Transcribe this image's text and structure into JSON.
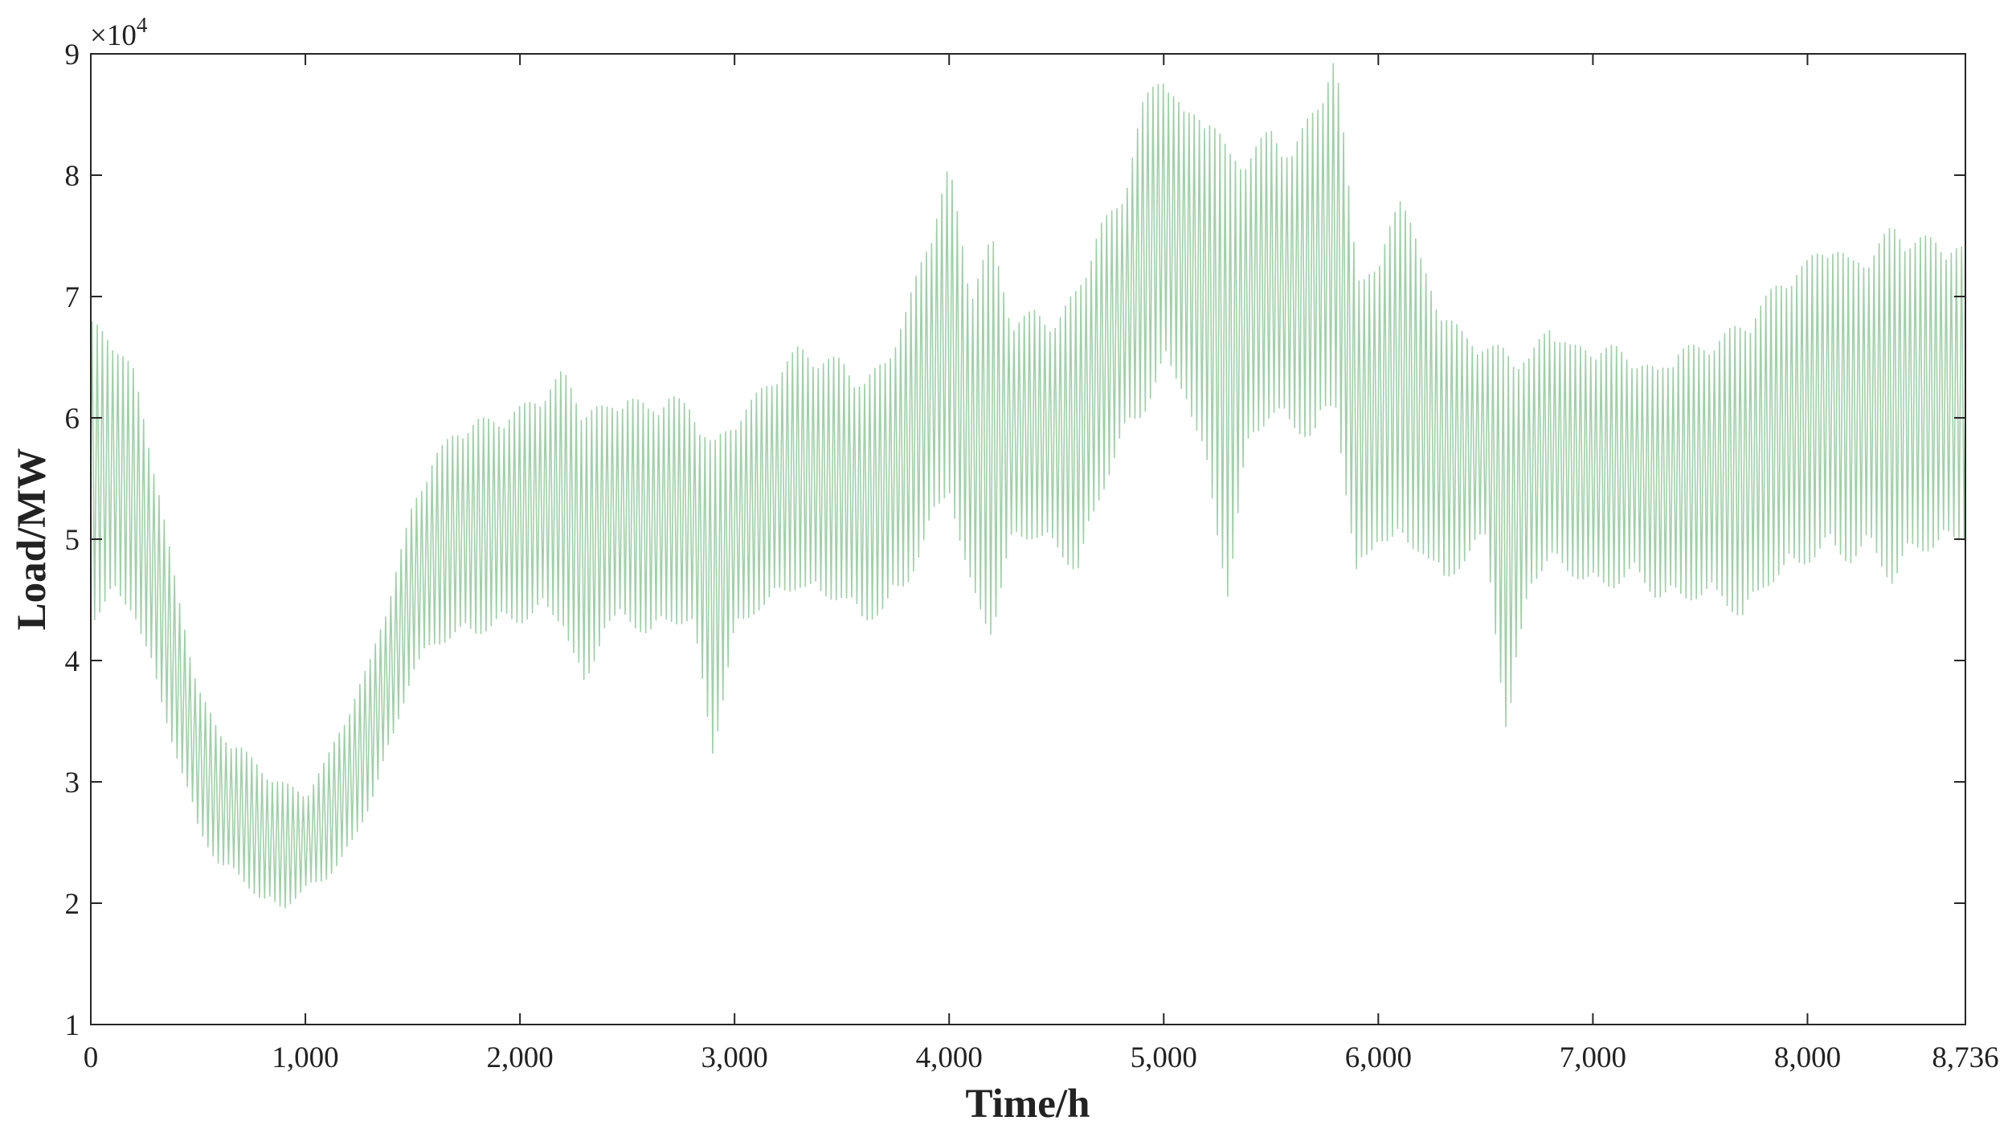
{
  "chart_data": {
    "type": "line",
    "xlabel": "Time/h",
    "ylabel": "Load/MW",
    "y_multiplier": "×10",
    "y_multiplier_exponent": "4",
    "xlim": [
      0,
      8736
    ],
    "ylim": [
      1,
      9
    ],
    "x_ticks": [
      0,
      1000,
      2000,
      3000,
      4000,
      5000,
      6000,
      7000,
      8000,
      8736
    ],
    "x_tick_labels": [
      "0",
      "1,000",
      "2,000",
      "3,000",
      "4,000",
      "5,000",
      "6,000",
      "7,000",
      "8,000",
      "8,736"
    ],
    "y_ticks": [
      1,
      2,
      3,
      4,
      5,
      6,
      7,
      8,
      9
    ],
    "y_tick_labels": [
      "1",
      "2",
      "3",
      "4",
      "5",
      "6",
      "7",
      "8",
      "9"
    ],
    "grid": false,
    "line_color": "#9fd0a8",
    "series": [
      {
        "x": [
          0,
          100,
          200,
          300,
          400,
          500,
          600,
          700,
          800,
          900,
          1000,
          1100,
          1200,
          1300,
          1400,
          1500,
          1600,
          1700,
          1800,
          1900,
          2000,
          2100,
          2200,
          2300,
          2400,
          2500,
          2600,
          2700,
          2800,
          2900,
          3000,
          3100,
          3200,
          3300,
          3400,
          3500,
          3600,
          3700,
          3800,
          3900,
          4000,
          4100,
          4200,
          4300,
          4400,
          4500,
          4600,
          4700,
          4800,
          4900,
          5000,
          5100,
          5200,
          5300,
          5400,
          5500,
          5600,
          5700,
          5800,
          5900,
          6000,
          6100,
          6200,
          6300,
          6400,
          6500,
          6600,
          6700,
          6800,
          6900,
          7000,
          7100,
          7200,
          7300,
          7400,
          7500,
          7600,
          7700,
          7800,
          7900,
          8000,
          8100,
          8200,
          8300,
          8400,
          8500,
          8600,
          8736
        ],
        "y_max": [
          6.8,
          6.7,
          6.4,
          5.6,
          4.6,
          3.8,
          3.4,
          3.3,
          3.1,
          3.0,
          2.9,
          3.2,
          3.6,
          4.0,
          4.6,
          5.3,
          5.7,
          5.9,
          6.0,
          6.0,
          6.1,
          6.2,
          6.4,
          6.1,
          6.1,
          6.2,
          6.1,
          6.2,
          6.1,
          5.8,
          6.0,
          6.2,
          6.4,
          6.6,
          6.5,
          6.5,
          6.3,
          6.5,
          6.9,
          7.5,
          8.1,
          7.1,
          7.5,
          6.8,
          6.9,
          6.8,
          7.1,
          7.6,
          7.8,
          8.6,
          8.9,
          8.5,
          8.6,
          8.2,
          8.2,
          8.4,
          8.2,
          8.6,
          9.0,
          7.3,
          7.2,
          8.0,
          7.3,
          6.9,
          6.7,
          6.6,
          6.6,
          6.5,
          6.8,
          6.6,
          6.6,
          6.6,
          6.5,
          6.4,
          6.6,
          6.6,
          6.7,
          6.8,
          7.0,
          7.2,
          7.3,
          7.5,
          7.3,
          7.4,
          7.6,
          7.5,
          7.5,
          7.4
        ],
        "y_min": [
          4.3,
          4.5,
          4.4,
          3.8,
          3.2,
          2.6,
          2.3,
          2.2,
          2.0,
          1.95,
          2.1,
          2.2,
          2.4,
          2.8,
          3.3,
          3.9,
          4.1,
          4.2,
          4.2,
          4.3,
          4.3,
          4.4,
          4.3,
          3.7,
          4.3,
          4.3,
          4.2,
          4.3,
          4.3,
          3.2,
          4.2,
          4.4,
          4.5,
          4.6,
          4.5,
          4.5,
          4.3,
          4.4,
          4.6,
          5.0,
          5.4,
          4.5,
          4.2,
          5.0,
          5.0,
          4.9,
          4.7,
          5.3,
          5.8,
          6.0,
          6.4,
          6.2,
          5.5,
          4.5,
          5.8,
          6.0,
          5.9,
          5.8,
          6.1,
          4.6,
          5.0,
          4.9,
          4.9,
          4.6,
          4.8,
          5.0,
          3.3,
          4.6,
          4.8,
          4.7,
          4.6,
          4.6,
          4.7,
          4.5,
          4.5,
          4.5,
          4.5,
          4.3,
          4.6,
          4.7,
          4.8,
          4.9,
          4.8,
          4.9,
          4.6,
          4.9,
          4.9,
          5.0
        ]
      }
    ]
  }
}
